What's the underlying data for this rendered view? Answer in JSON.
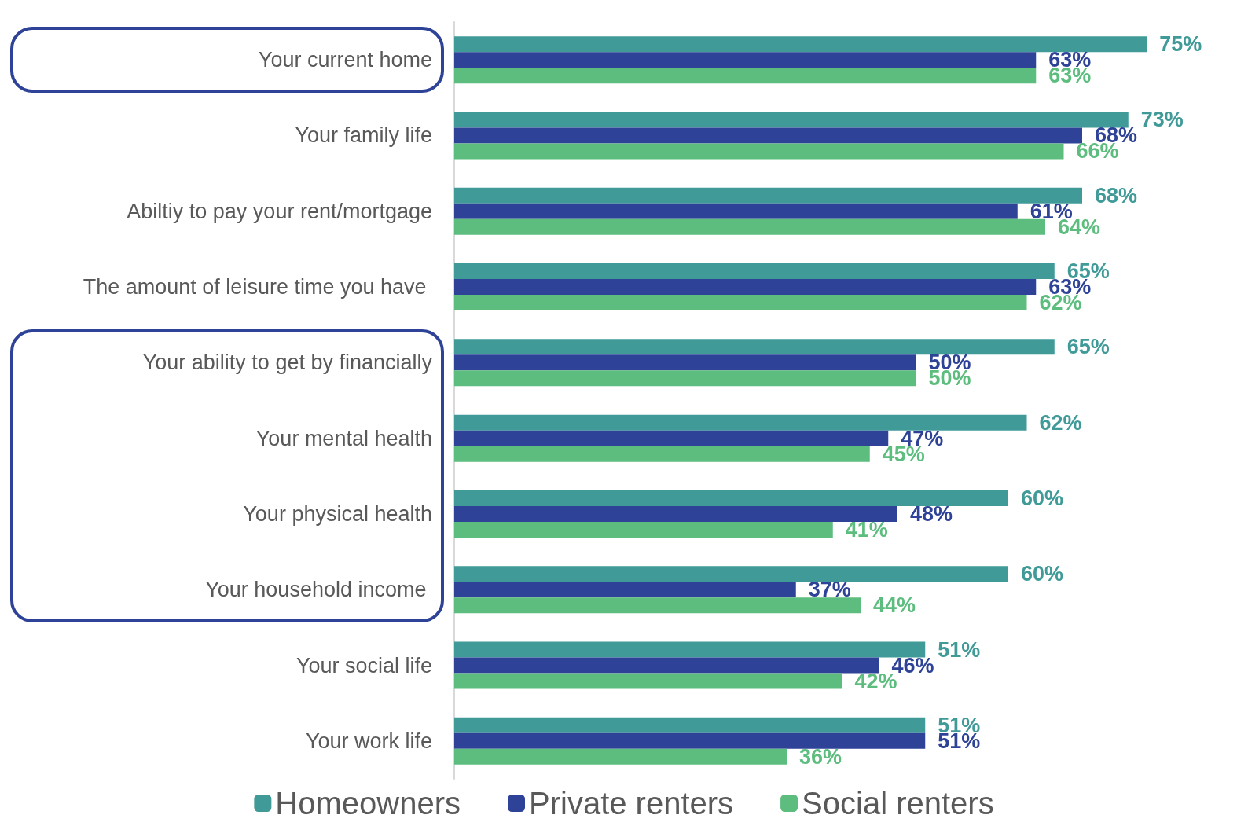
{
  "chart_data": {
    "type": "bar",
    "orientation": "horizontal",
    "categories": [
      "Your current home",
      "Your family life",
      "Abiltiy to pay your rent/mortgage",
      "The amount of leisure time you have ",
      "Your ability to get by financially",
      "Your mental health",
      "Your physical health",
      "Your household income ",
      "Your social life",
      "Your work life"
    ],
    "series": [
      {
        "name": "Homeowners",
        "color": "#3f9a98",
        "values": [
          75,
          73,
          68,
          65,
          65,
          62,
          60,
          60,
          51,
          51
        ],
        "value_labels": [
          "75%",
          "73%",
          "68%",
          "65%",
          "65%",
          "62%",
          "60%",
          "60%",
          "51%",
          "51%"
        ]
      },
      {
        "name": "Private renters",
        "color": "#2e4397",
        "values": [
          63,
          68,
          61,
          63,
          50,
          47,
          48,
          37,
          46,
          51
        ],
        "value_labels": [
          "63%",
          "68%",
          "61%",
          "63%",
          "50%",
          "47%",
          "48%",
          "37%",
          "46%",
          "51%"
        ]
      },
      {
        "name": "Social renters",
        "color": "#5dbd7e",
        "values": [
          63,
          66,
          64,
          62,
          50,
          45,
          41,
          44,
          42,
          36
        ],
        "value_labels": [
          "63%",
          "66%",
          "64%",
          "62%",
          "50%",
          "45%",
          "41%",
          "44%",
          "42%",
          "36%"
        ]
      }
    ],
    "tick_labels": "y",
    "grid": false,
    "legend": "bottom"
  }
}
